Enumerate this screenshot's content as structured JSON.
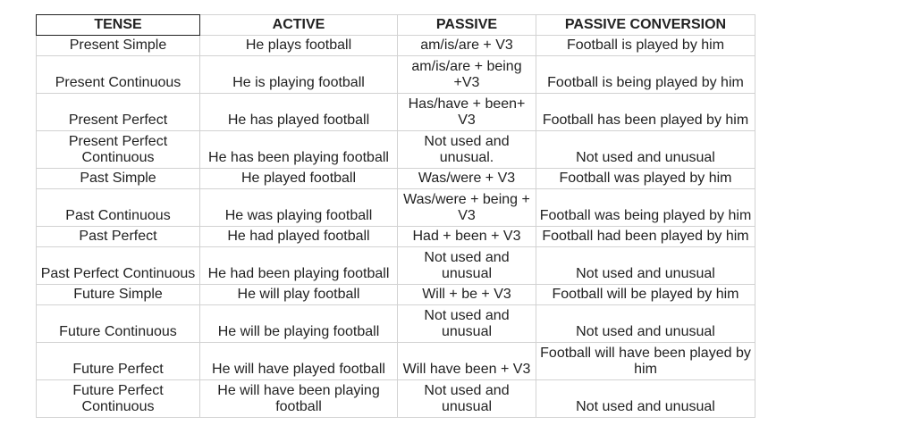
{
  "headers": [
    "TENSE",
    "ACTIVE",
    "PASSIVE",
    "PASSIVE CONVERSION"
  ],
  "rows": [
    {
      "tense": "Present Simple",
      "active": "He plays football",
      "passive": "am/is/are + V3",
      "conversion": "Football is played by him"
    },
    {
      "tense": "Present Continuous",
      "active": "He is playing football",
      "passive": "am/is/are + being +V3",
      "conversion": "Football is being played by him"
    },
    {
      "tense": "Present Perfect",
      "active": "He has played football",
      "passive": "Has/have + been+ V3",
      "conversion": "Football has been played by him"
    },
    {
      "tense": "Present Perfect Continuous",
      "active": "He has been playing football",
      "passive": "Not used and unusual.",
      "conversion": "Not used and unusual"
    },
    {
      "tense": "Past Simple",
      "active": "He played football",
      "passive": "Was/were + V3",
      "conversion": "Football was played by him"
    },
    {
      "tense": "Past Continuous",
      "active": "He was playing football",
      "passive": "Was/were + being + V3",
      "conversion": "Football was being played by him"
    },
    {
      "tense": "Past Perfect",
      "active": "He had played football",
      "passive": "Had + been + V3",
      "conversion": "Football had been played by him"
    },
    {
      "tense": "Past Perfect Continuous",
      "active": "He had been playing football",
      "passive": "Not used and unusual",
      "conversion": "Not used and unusual"
    },
    {
      "tense": "Future Simple",
      "active": "He will play football",
      "passive": "Will + be + V3",
      "conversion": "Football will be played by him"
    },
    {
      "tense": "Future Continuous",
      "active": "He will be playing football",
      "passive": "Not used and unusual",
      "conversion": "Not used and unusual"
    },
    {
      "tense": "Future Perfect",
      "active": "He will have played football",
      "passive": "Will have been + V3",
      "conversion": "Football will have been played by him"
    },
    {
      "tense": "Future Perfect Continuous",
      "active": "He will have been playing football",
      "passive": "Not used and unusual",
      "conversion": "Not used and unusual"
    }
  ]
}
